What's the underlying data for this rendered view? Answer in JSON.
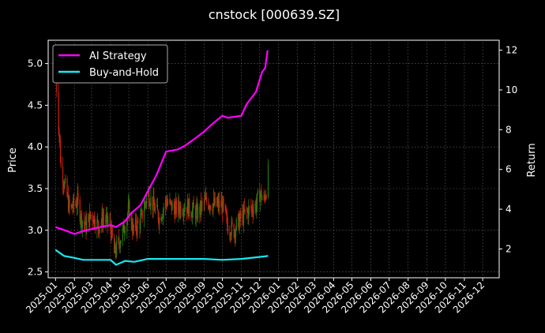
{
  "chart_data": {
    "type": "line",
    "title": "cnstock [000639.SZ]",
    "ylabel_left": "Price",
    "ylabel_right": "Return",
    "ylim_left": [
      2.43,
      5.28
    ],
    "ylim_right": [
      0.55,
      12.5
    ],
    "yticks_left": [
      "2.5",
      "3.0",
      "3.5",
      "4.0",
      "4.5",
      "5.0"
    ],
    "yticks_right": [
      "2",
      "4",
      "6",
      "8",
      "10",
      "12"
    ],
    "xlim": [
      "2024-12-20",
      "2026-12-28"
    ],
    "xticks": [
      "2025-01",
      "2025-02",
      "2025-03",
      "2025-04",
      "2025-05",
      "2025-06",
      "2025-07",
      "2025-08",
      "2025-09",
      "2025-10",
      "2025-11",
      "2025-12",
      "2026-01",
      "2026-02",
      "2026-03",
      "2026-04",
      "2026-05",
      "2026-06",
      "2026-07",
      "2026-08",
      "2026-09",
      "2026-10",
      "2026-11",
      "2026-12"
    ],
    "grid": true,
    "legend_position": "top-left",
    "colors": {
      "up": "#2a7a10",
      "down": "#d02010",
      "ai": "#ff00ff",
      "bh": "#18e8f0",
      "grid": "#555555"
    },
    "price_path": [
      [
        "2025-01-02",
        4.85
      ],
      [
        "2025-01-06",
        4.3
      ],
      [
        "2025-01-10",
        3.75
      ],
      [
        "2025-01-16",
        3.55
      ],
      [
        "2025-01-24",
        3.25
      ],
      [
        "2025-02-06",
        3.35
      ],
      [
        "2025-02-12",
        3.15
      ],
      [
        "2025-02-20",
        3.05
      ],
      [
        "2025-03-01",
        3.2
      ],
      [
        "2025-03-12",
        3.05
      ],
      [
        "2025-03-20",
        3.15
      ],
      [
        "2025-04-01",
        3.05
      ],
      [
        "2025-04-07",
        2.72
      ],
      [
        "2025-04-12",
        2.8
      ],
      [
        "2025-04-20",
        2.95
      ],
      [
        "2025-05-01",
        3.25
      ],
      [
        "2025-05-08",
        3.0
      ],
      [
        "2025-05-20",
        3.1
      ],
      [
        "2025-06-01",
        3.45
      ],
      [
        "2025-06-10",
        3.3
      ],
      [
        "2025-06-20",
        3.15
      ],
      [
        "2025-07-01",
        3.35
      ],
      [
        "2025-07-15",
        3.25
      ],
      [
        "2025-08-01",
        3.3
      ],
      [
        "2025-08-20",
        3.2
      ],
      [
        "2025-09-05",
        3.35
      ],
      [
        "2025-09-20",
        3.3
      ],
      [
        "2025-10-01",
        3.3
      ],
      [
        "2025-10-10",
        3.05
      ],
      [
        "2025-10-20",
        3.0
      ],
      [
        "2025-11-01",
        3.15
      ],
      [
        "2025-11-15",
        3.25
      ],
      [
        "2025-11-25",
        3.3
      ],
      [
        "2025-12-01",
        3.45
      ],
      [
        "2025-12-08",
        3.35
      ],
      [
        "2025-12-12",
        3.5
      ],
      [
        "2025-12-15",
        3.7
      ]
    ],
    "series": [
      {
        "name": "AI Strategy",
        "axis": "right",
        "points": [
          [
            "2025-01-01",
            3.1
          ],
          [
            "2025-01-20",
            2.9
          ],
          [
            "2025-02-01",
            2.75
          ],
          [
            "2025-02-15",
            2.9
          ],
          [
            "2025-03-01",
            3.0
          ],
          [
            "2025-03-15",
            3.1
          ],
          [
            "2025-04-01",
            3.2
          ],
          [
            "2025-04-10",
            3.1
          ],
          [
            "2025-04-25",
            3.4
          ],
          [
            "2025-05-05",
            3.8
          ],
          [
            "2025-05-20",
            4.2
          ],
          [
            "2025-06-01",
            4.9
          ],
          [
            "2025-06-15",
            5.7
          ],
          [
            "2025-07-01",
            6.9
          ],
          [
            "2025-07-20",
            7.0
          ],
          [
            "2025-08-01",
            7.2
          ],
          [
            "2025-08-15",
            7.5
          ],
          [
            "2025-09-01",
            7.9
          ],
          [
            "2025-09-15",
            8.3
          ],
          [
            "2025-10-01",
            8.7
          ],
          [
            "2025-10-10",
            8.6
          ],
          [
            "2025-11-01",
            8.7
          ],
          [
            "2025-11-10",
            9.3
          ],
          [
            "2025-11-25",
            9.9
          ],
          [
            "2025-12-05",
            10.9
          ],
          [
            "2025-12-10",
            11.1
          ],
          [
            "2025-12-14",
            12.0
          ]
        ]
      },
      {
        "name": "Buy-and-Hold",
        "axis": "right",
        "points": [
          [
            "2025-01-01",
            1.95
          ],
          [
            "2025-01-15",
            1.65
          ],
          [
            "2025-02-01",
            1.55
          ],
          [
            "2025-02-15",
            1.45
          ],
          [
            "2025-03-01",
            1.45
          ],
          [
            "2025-04-01",
            1.45
          ],
          [
            "2025-04-10",
            1.2
          ],
          [
            "2025-04-25",
            1.4
          ],
          [
            "2025-05-10",
            1.35
          ],
          [
            "2025-06-01",
            1.5
          ],
          [
            "2025-07-01",
            1.5
          ],
          [
            "2025-08-01",
            1.5
          ],
          [
            "2025-09-01",
            1.5
          ],
          [
            "2025-10-01",
            1.45
          ],
          [
            "2025-11-01",
            1.5
          ],
          [
            "2025-12-01",
            1.6
          ],
          [
            "2025-12-15",
            1.65
          ]
        ]
      }
    ]
  }
}
